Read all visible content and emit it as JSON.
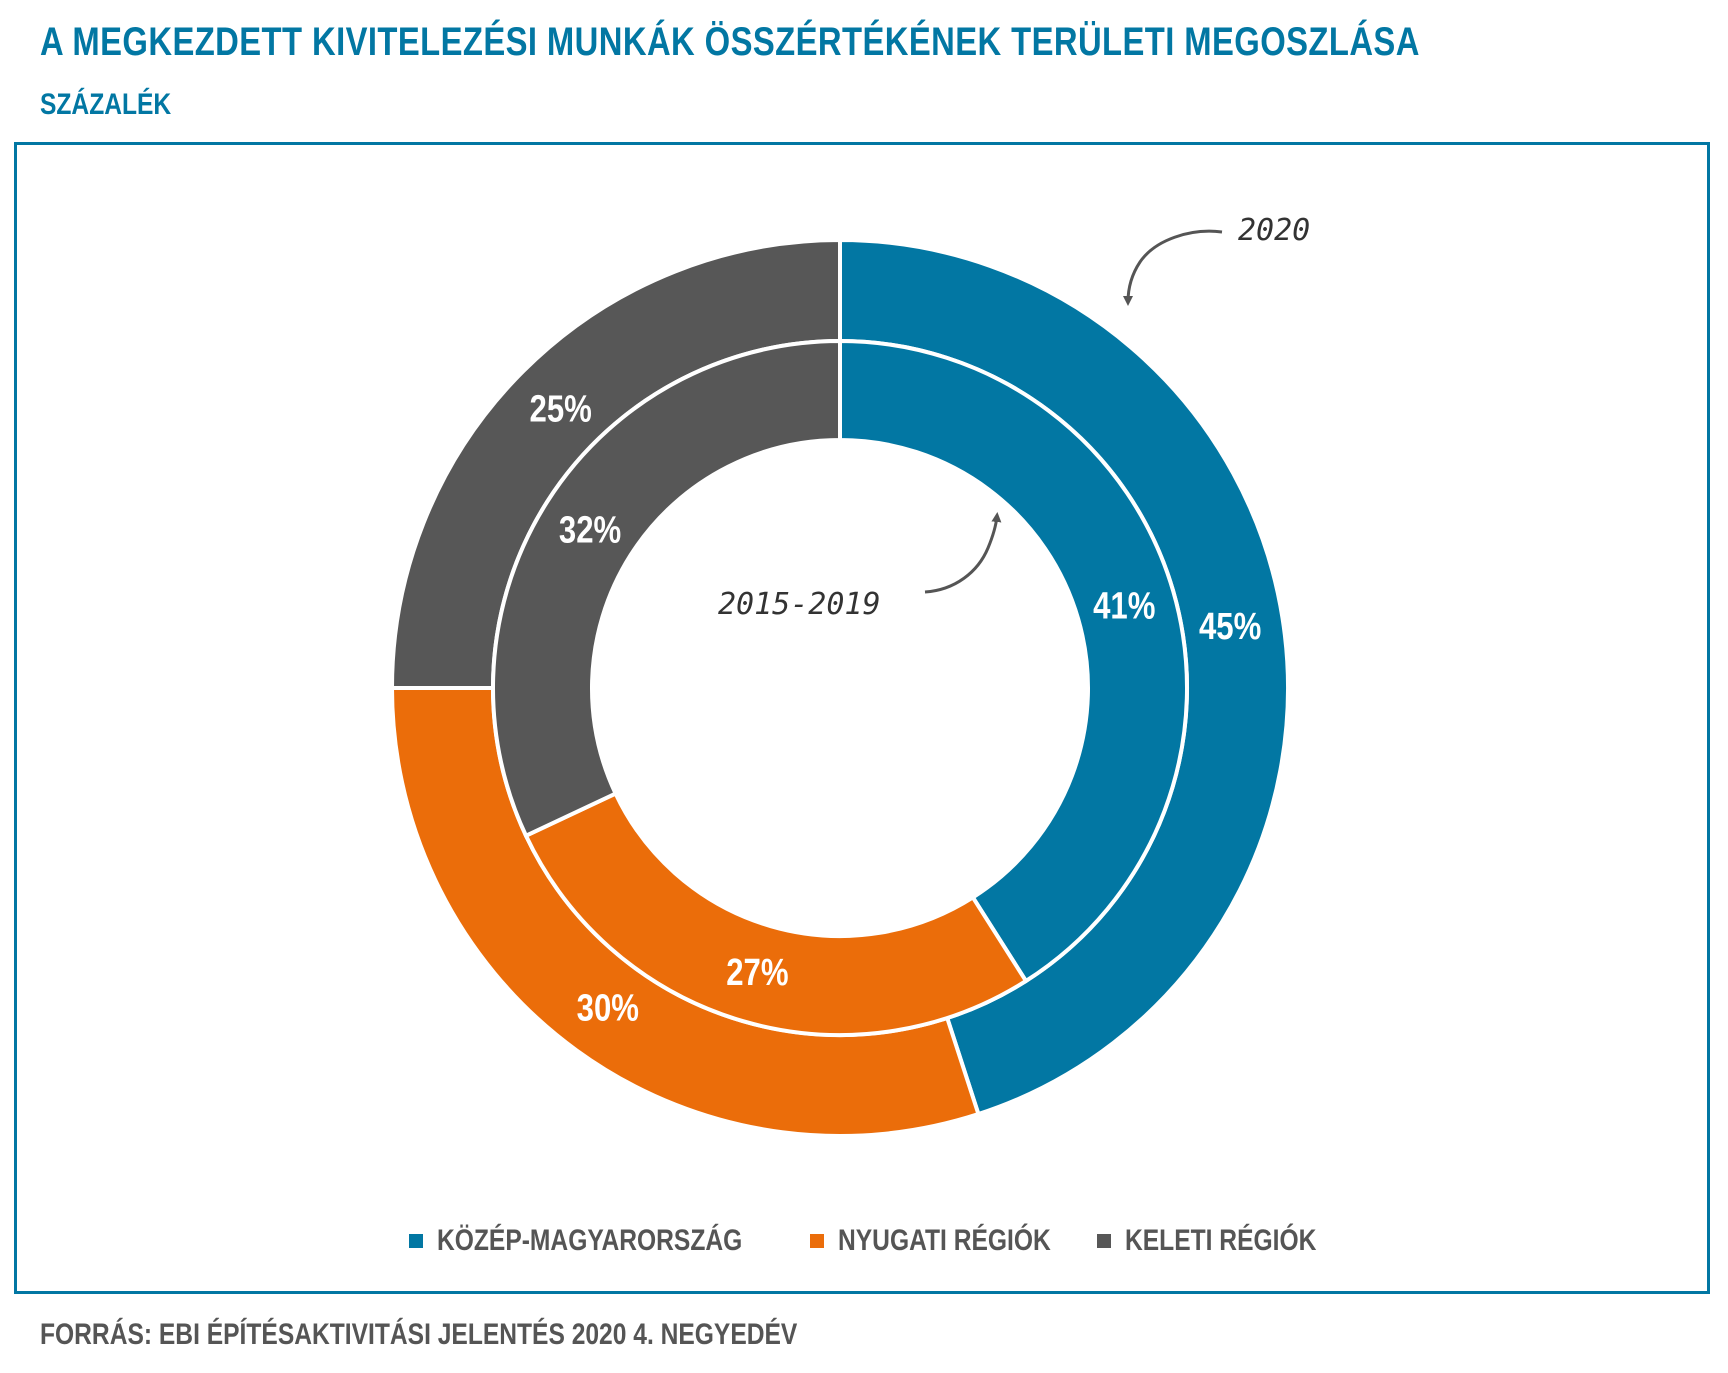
{
  "header": {
    "title": "A MEGKEZDETT KIVITELEZÉSI MUNKÁK ÖSSZÉRTÉKÉNEK TERÜLETI MEGOSZLÁSA",
    "subtitle": "SZÁZALÉK"
  },
  "footer": {
    "source": "FORRÁS: EBI ÉPÍTÉSAKTIVITÁSI JELENTÉS 2020 4. NEGYEDÉV"
  },
  "chart_data": {
    "type": "pie",
    "subtype": "nested-donut",
    "categories": [
      "KÖZÉP-MAGYARORSZÁG",
      "NYUGATI RÉGIÓK",
      "KELETI RÉGIÓK"
    ],
    "colors": [
      "#0277a3",
      "#eb6d0a",
      "#575757"
    ],
    "series": [
      {
        "ring": "outer",
        "annotation": "2020",
        "values": [
          45,
          30,
          25
        ],
        "labels": [
          "45%",
          "30%",
          "25%"
        ]
      },
      {
        "ring": "inner",
        "annotation": "2015-2019",
        "values": [
          41,
          27,
          32
        ],
        "labels": [
          "41%",
          "27%",
          "32%"
        ]
      }
    ],
    "legend": "bottom",
    "unit": "%"
  }
}
